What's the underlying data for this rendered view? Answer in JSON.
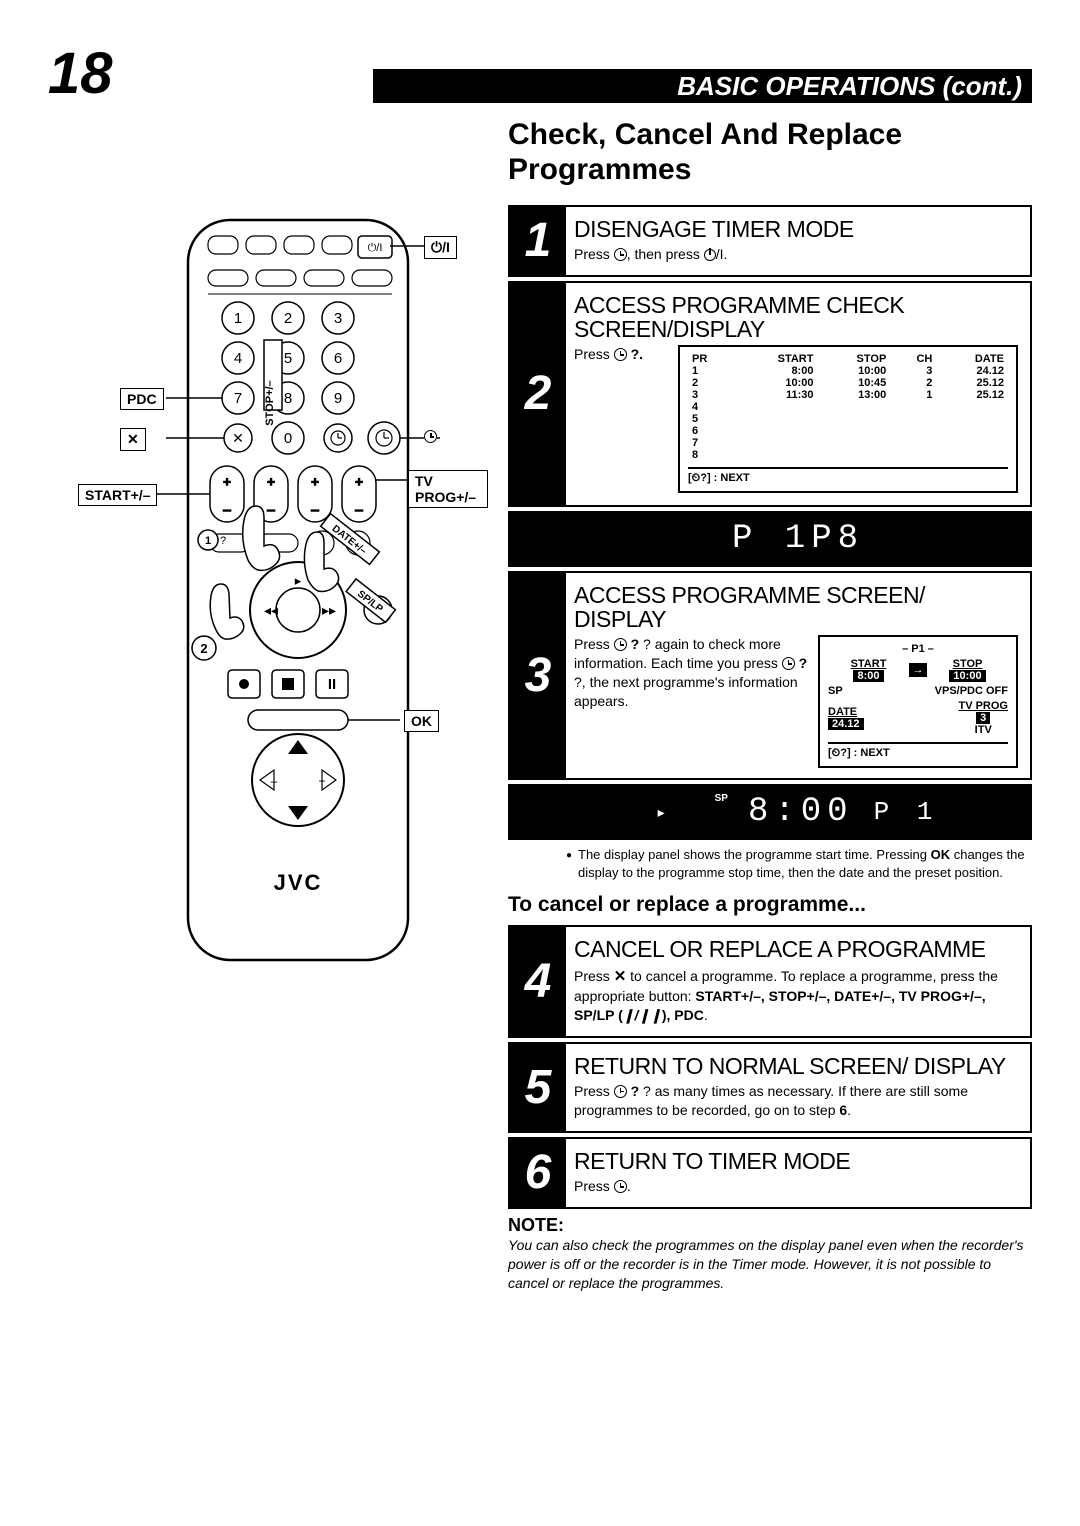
{
  "page_number": "18",
  "header_bar": "BASIC OPERATIONS (cont.)",
  "section_title": "Check, Cancel And Replace Programmes",
  "remote": {
    "brand": "JVC",
    "labels": {
      "pdc": "PDC",
      "x": "✕",
      "start": "START+/–",
      "stop_vert": "STOP+/–",
      "tvprog": "TV PROG+/–",
      "date": "DATE+/–",
      "splp": "SP/LP",
      "ok": "OK",
      "power": "⏻/I"
    },
    "keypad": [
      "1",
      "2",
      "3",
      "4",
      "5",
      "6",
      "7",
      "8",
      "9",
      "0"
    ]
  },
  "steps": [
    {
      "num": "1",
      "title": "DISENGAGE TIMER MODE",
      "body_prefix": "Press ",
      "body_mid": ", then press ",
      "body_suffix": "/I."
    },
    {
      "num": "2",
      "title": "ACCESS PROGRAMME CHECK SCREEN/DISPLAY",
      "body_prefix": "Press ",
      "body_suffix": " ?."
    },
    {
      "num": "3",
      "title": "ACCESS PROGRAMME SCREEN/ DISPLAY",
      "body_prefix": "Press ",
      "body_mid1": " ? again to check more information. Each time you press ",
      "body_mid2": " ?, the next programme's information appears."
    },
    {
      "num": "4",
      "title": "CANCEL OR REPLACE A PROGRAMME",
      "body_prefix": "Press ",
      "body_x": "✕",
      "body_mid": " to cancel a programme. To replace a programme, press the appropriate button: ",
      "body_bold": "START+/–, STOP+/–, DATE+/–, TV PROG+/–, SP/LP (",
      "body_bars": "❙/❙❙",
      "body_bold2": "), PDC",
      "body_end": "."
    },
    {
      "num": "5",
      "title": "RETURN TO NORMAL SCREEN/ DISPLAY",
      "body_prefix": "Press ",
      "body_mid": " ? as many times as necessary. If there are still some programmes to be recorded, go on to step ",
      "body_bold": "6",
      "body_end": "."
    },
    {
      "num": "6",
      "title": "RETURN TO TIMER MODE",
      "body_prefix": "Press ",
      "body_end": "."
    }
  ],
  "osd2": {
    "headers": [
      "PR",
      "START",
      "STOP",
      "CH",
      "DATE"
    ],
    "rows": [
      [
        "1",
        "8:00",
        "10:00",
        "3",
        "24.12"
      ],
      [
        "2",
        "10:00",
        "10:45",
        "2",
        "25.12"
      ],
      [
        "3",
        "11:30",
        "13:00",
        "1",
        "25.12"
      ],
      [
        "4",
        "",
        "",
        "",
        ""
      ],
      [
        "5",
        "",
        "",
        "",
        ""
      ],
      [
        "6",
        "",
        "",
        "",
        ""
      ],
      [
        "7",
        "",
        "",
        "",
        ""
      ],
      [
        "8",
        "",
        "",
        "",
        ""
      ]
    ],
    "footer": "[⏲?] : NEXT"
  },
  "lcd1": "P 1P8",
  "osd3": {
    "header": "– P1 –",
    "start_label": "START",
    "start_val": "8:00",
    "stop_label": "STOP",
    "stop_val": "10:00",
    "sp": "SP",
    "vps": "VPS/PDC OFF",
    "date_label": "DATE",
    "date_val": "24.12",
    "tvprog_label": "TV PROG",
    "tvprog_val": "3",
    "tvprog_name": "ITV",
    "footer": "[⏲?] : NEXT"
  },
  "lcd2": {
    "play": "▸",
    "sp": "SP",
    "time": "8:00",
    "p": "P 1"
  },
  "bullet_note": "The display panel shows the programme start time. Pressing OK changes the display to the programme stop time, then the date and the preset position.",
  "bullet_bold": "OK",
  "sub_title": "To cancel or replace a programme...",
  "note_head": "NOTE:",
  "note_body": "You can also check the programmes on the display panel even when the recorder's power is off or the recorder is in the Timer mode. However, it is not possible to cancel or replace the programmes."
}
